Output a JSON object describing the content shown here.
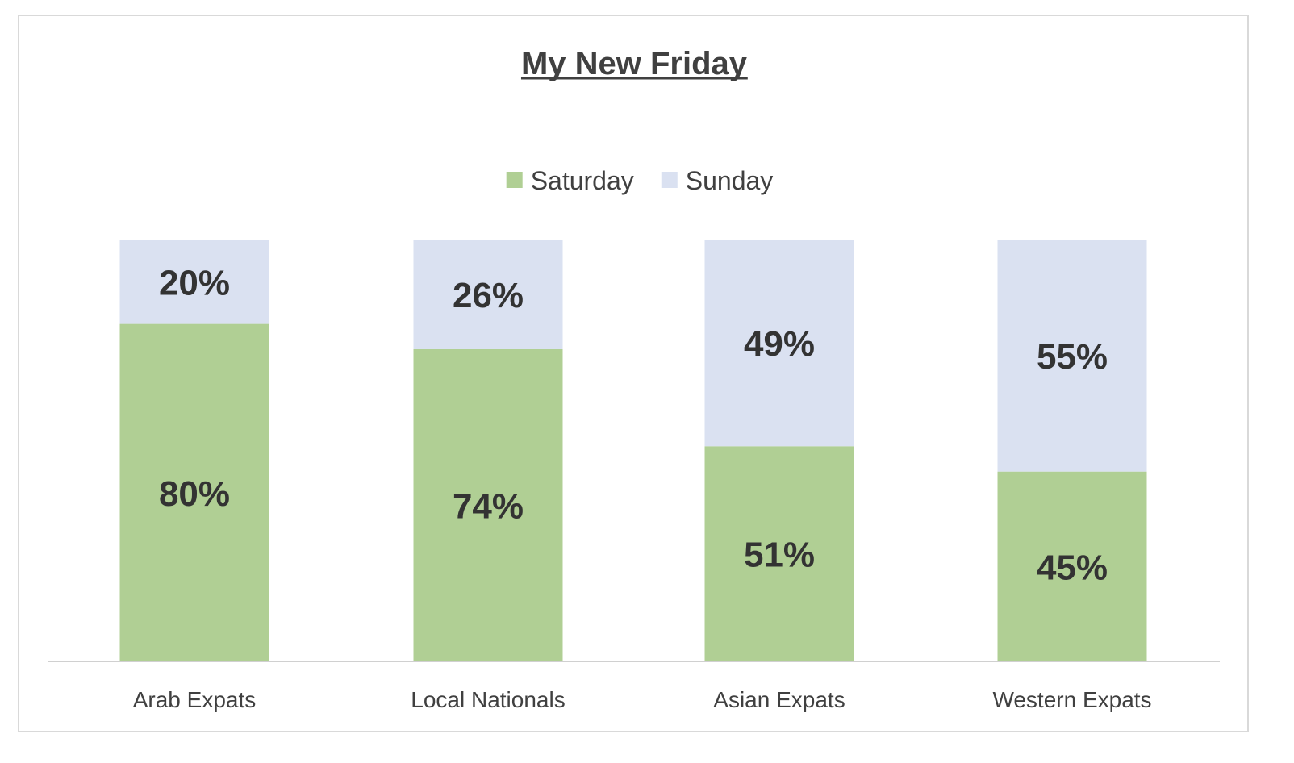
{
  "chart_data": {
    "type": "bar",
    "stacked": true,
    "title": "My New Friday",
    "xlabel": "",
    "ylabel": "",
    "ylim": [
      0,
      100
    ],
    "grid": false,
    "legend_position": "top",
    "categories": [
      "Arab Expats",
      "Local Nationals",
      "Asian Expats",
      "Western Expats"
    ],
    "series": [
      {
        "name": "Saturday",
        "color": "#b0cf94",
        "values": [
          80,
          74,
          51,
          45
        ],
        "labels": [
          "80%",
          "74%",
          "51%",
          "45%"
        ]
      },
      {
        "name": "Sunday",
        "color": "#dae1f1",
        "values": [
          20,
          26,
          49,
          55
        ],
        "labels": [
          "20%",
          "26%",
          "49%",
          "55%"
        ]
      }
    ]
  }
}
